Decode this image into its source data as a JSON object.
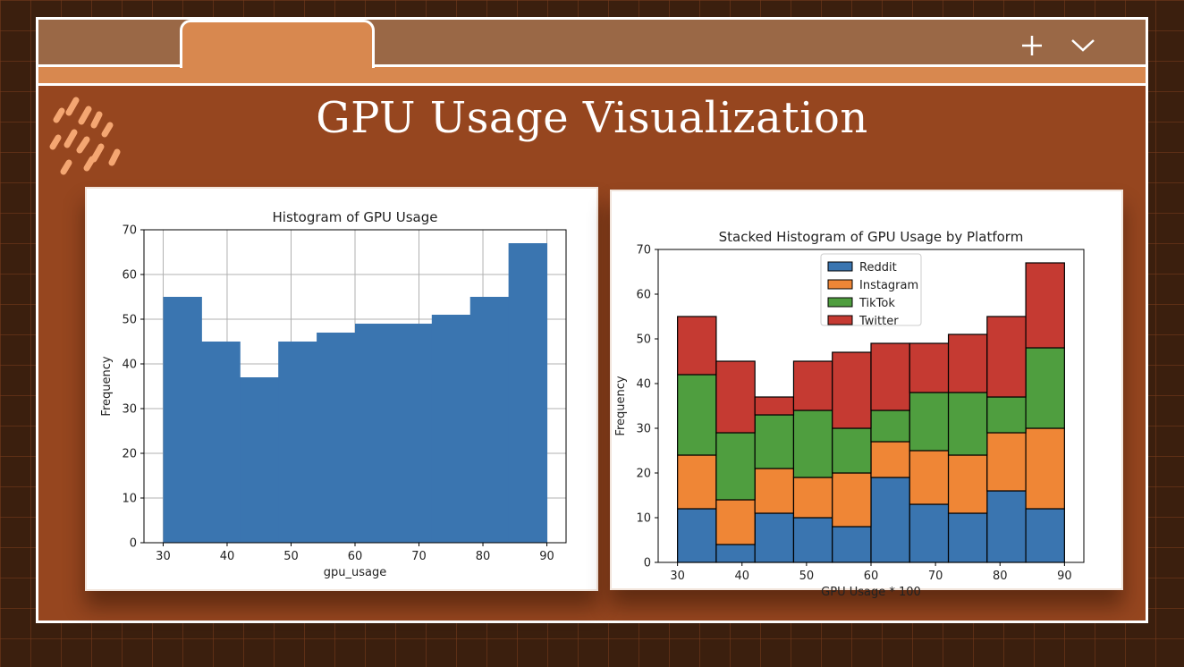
{
  "window": {
    "title": "GPU Usage Visualization",
    "icons": {
      "add": "plus-icon",
      "expand": "chevron-down-icon",
      "decoration": "slash-pattern-icon"
    }
  },
  "colors": {
    "background": "#3b1f0e",
    "panel": "#96461f",
    "topbar": "#9a6846",
    "tab": "#d8884f",
    "reddit": "#3a75b0",
    "instagram": "#ef8636",
    "tiktok": "#4f9e3f",
    "twitter": "#c53a32",
    "histogram": "#3a75b0"
  },
  "chart_data": [
    {
      "type": "bar",
      "title": "Histogram of GPU Usage",
      "xlabel": "gpu_usage",
      "ylabel": "Frequency",
      "bin_edges": [
        30,
        36,
        42,
        48,
        54,
        60,
        66,
        72,
        78,
        84,
        90
      ],
      "values": [
        55,
        45,
        37,
        45,
        47,
        49,
        49,
        51,
        55,
        67
      ],
      "xlim": [
        27,
        93
      ],
      "ylim": [
        0,
        70
      ],
      "xticks": [
        "30",
        "40",
        "50",
        "60",
        "70",
        "80",
        "90"
      ],
      "yticks": [
        "0",
        "10",
        "20",
        "30",
        "40",
        "50",
        "60",
        "70"
      ],
      "grid": true
    },
    {
      "type": "bar",
      "stacked": true,
      "title": "Stacked Histogram of GPU Usage by Platform",
      "xlabel": "GPU Usage * 100",
      "ylabel": "Frequency",
      "bin_edges": [
        30,
        36,
        42,
        48,
        54,
        60,
        66,
        72,
        78,
        84,
        90
      ],
      "series": [
        {
          "name": "Reddit",
          "values": [
            12,
            4,
            11,
            10,
            8,
            19,
            13,
            11,
            16,
            12
          ]
        },
        {
          "name": "Instagram",
          "values": [
            12,
            10,
            10,
            9,
            12,
            8,
            12,
            13,
            13,
            18
          ]
        },
        {
          "name": "TikTok",
          "values": [
            18,
            15,
            12,
            15,
            10,
            7,
            13,
            14,
            8,
            18
          ]
        },
        {
          "name": "Twitter",
          "values": [
            13,
            16,
            4,
            11,
            17,
            15,
            11,
            13,
            18,
            19
          ]
        }
      ],
      "xlim": [
        27,
        93
      ],
      "ylim": [
        0,
        70
      ],
      "xticks": [
        "30",
        "40",
        "50",
        "60",
        "70",
        "80",
        "90"
      ],
      "yticks": [
        "0",
        "10",
        "20",
        "30",
        "40",
        "50",
        "60",
        "70"
      ],
      "grid": false,
      "legend": "top-center"
    }
  ]
}
